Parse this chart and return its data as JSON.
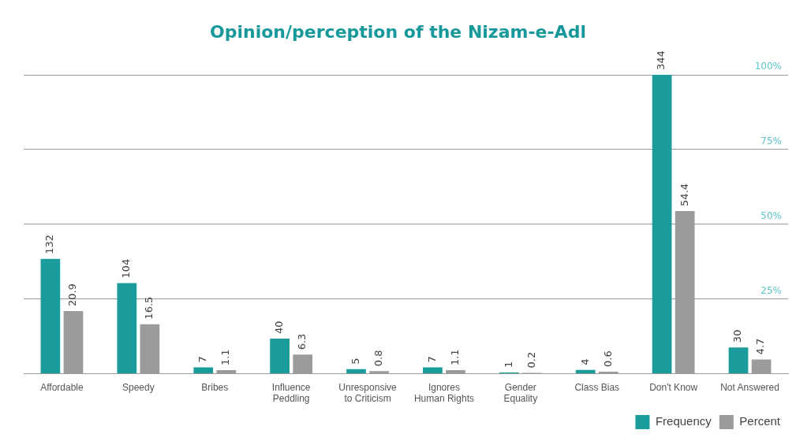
{
  "chart_data": {
    "type": "bar",
    "title": "Opinion/perception of the Nizam-e-Adl",
    "categories": [
      "Affordable",
      "Speedy",
      "Bribes",
      "Influence Peddling",
      "Unresponsive to Criticism",
      "Ignores Human Rights",
      "Gender Equality",
      "Class Bias",
      "Don't Know",
      "Not Answered"
    ],
    "series": [
      {
        "name": "Frequency",
        "color": "#1a9c9c",
        "values": [
          132,
          104,
          7,
          40,
          5,
          7,
          1,
          4,
          344,
          30
        ]
      },
      {
        "name": "Percent",
        "color": "#9b9b9b",
        "axis": "y2",
        "values": [
          20.9,
          16.5,
          1.1,
          6.3,
          0.8,
          1.1,
          0.2,
          0.6,
          54.4,
          4.7
        ]
      }
    ],
    "y2lim": [
      0,
      100
    ],
    "y2ticks": [
      {
        "value": 25,
        "label": "25%"
      },
      {
        "value": 50,
        "label": "50%"
      },
      {
        "value": 75,
        "label": "75%"
      },
      {
        "value": 100,
        "label": "100%"
      }
    ],
    "grid": "y",
    "legend": "bottom right",
    "data_labels": true
  }
}
